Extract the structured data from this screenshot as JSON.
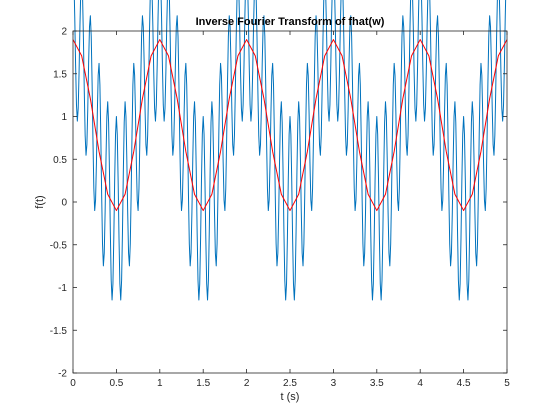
{
  "chart_data": {
    "type": "line",
    "title": "Inverse Fourier Transform of fhat(w)",
    "xlabel": "t (s)",
    "ylabel": "f(t)",
    "xlim": [
      0,
      5
    ],
    "ylim": [
      -2,
      2
    ],
    "grid": false,
    "legend": "none",
    "x_ticks": [
      0,
      0.5,
      1,
      1.5,
      2,
      2.5,
      3,
      3.5,
      4,
      4.5,
      5
    ],
    "x_tick_labels": [
      "0",
      "0.5",
      "1",
      "1.5",
      "2",
      "2.5",
      "3",
      "3.5",
      "4",
      "4.5",
      "5"
    ],
    "y_ticks": [
      -2,
      -1.5,
      -1,
      -0.5,
      0,
      0.5,
      1,
      1.5,
      2
    ],
    "y_tick_labels": [
      "-2",
      "-1.5",
      "-1",
      "-0.5",
      "0",
      "0.5",
      "1",
      "1.5",
      "2"
    ],
    "series": [
      {
        "color": "#0072BD",
        "sample_interval": 0.01,
        "formula": "y = 0.9 + cos(2πt) + cos(20πt) - 0.1·cos(2πt)·cos(20πt)"
      },
      {
        "color": "#FF0000",
        "x": [
          0,
          0.1,
          0.2,
          0.3,
          0.4,
          0.5,
          0.6,
          0.7,
          0.8,
          0.9,
          1.0,
          1.1,
          1.2,
          1.3,
          1.4,
          1.5,
          1.6,
          1.7,
          1.8,
          1.9,
          2.0,
          2.1,
          2.2,
          2.3,
          2.4,
          2.5,
          2.6,
          2.7,
          2.8,
          2.9,
          3.0,
          3.1,
          3.2,
          3.3,
          3.4,
          3.5,
          3.6,
          3.7,
          3.8,
          3.9,
          4.0,
          4.1,
          4.2,
          4.3,
          4.4,
          4.5,
          4.6,
          4.7,
          4.8,
          4.9,
          5.0
        ],
        "values": [
          1.9,
          1.709,
          1.209,
          0.591,
          0.091,
          -0.1,
          0.091,
          0.591,
          1.209,
          1.709,
          1.9,
          1.709,
          1.209,
          0.591,
          0.091,
          -0.1,
          0.091,
          0.591,
          1.209,
          1.709,
          1.9,
          1.709,
          1.209,
          0.591,
          0.091,
          -0.1,
          0.091,
          0.591,
          1.209,
          1.709,
          1.9,
          1.709,
          1.209,
          0.591,
          0.091,
          -0.1,
          0.091,
          0.591,
          1.209,
          1.709,
          1.9,
          1.709,
          1.209,
          0.591,
          0.091,
          -0.1,
          0.091,
          0.591,
          1.209,
          1.709,
          1.9
        ]
      }
    ]
  }
}
